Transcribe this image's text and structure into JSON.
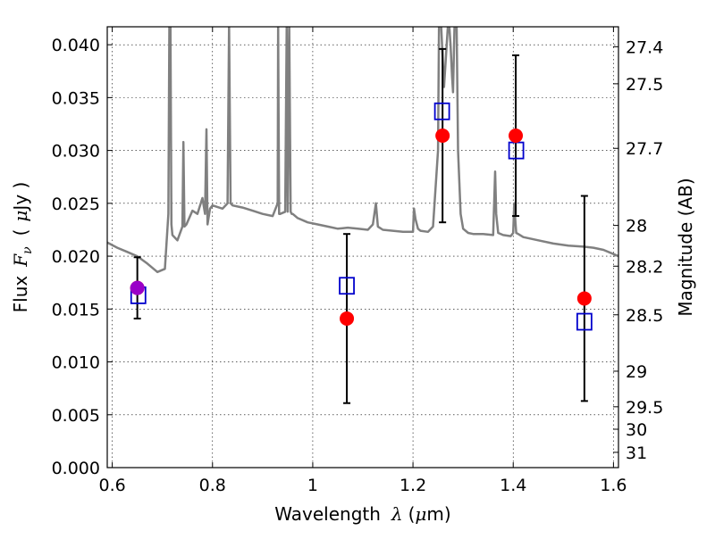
{
  "chart_data": {
    "type": "scatter",
    "xlabel": "Wavelength",
    "xlabel_symbol": "λ",
    "xlabel_unit_prefix": "(",
    "xlabel_unit_mu": "μ",
    "xlabel_unit_rest": "m)",
    "ylabel": "Flux",
    "ylabel_symbol": "F",
    "ylabel_subscript": "ν",
    "ylabel_unit_open": "(",
    "ylabel_unit_mu": "μ",
    "ylabel_unit_rest": "Jy )",
    "ylabel_right": "Magnitude (AB)",
    "xlim": [
      0.59,
      1.61
    ],
    "ylim": [
      0.0,
      0.0417
    ],
    "grid": true,
    "x_ticks": [
      {
        "value": 0.6,
        "label": "0.6"
      },
      {
        "value": 0.8,
        "label": "0.8"
      },
      {
        "value": 1.0,
        "label": "1"
      },
      {
        "value": 1.2,
        "label": "1.2"
      },
      {
        "value": 1.4,
        "label": "1.4"
      },
      {
        "value": 1.6,
        "label": "1.6"
      }
    ],
    "y_ticks": [
      {
        "value": 0.0,
        "label": "0.000"
      },
      {
        "value": 0.005,
        "label": "0.005"
      },
      {
        "value": 0.01,
        "label": "0.010"
      },
      {
        "value": 0.015,
        "label": "0.015"
      },
      {
        "value": 0.02,
        "label": "0.020"
      },
      {
        "value": 0.025,
        "label": "0.025"
      },
      {
        "value": 0.03,
        "label": "0.030"
      },
      {
        "value": 0.035,
        "label": "0.035"
      },
      {
        "value": 0.04,
        "label": "0.040"
      }
    ],
    "right_ticks": [
      {
        "value": 27.4,
        "label": "27.4"
      },
      {
        "value": 27.5,
        "label": "27.5"
      },
      {
        "value": 27.7,
        "label": "27.7"
      },
      {
        "value": 28.0,
        "label": "28"
      },
      {
        "value": 28.2,
        "label": "28.2"
      },
      {
        "value": 28.5,
        "label": "28.5"
      },
      {
        "value": 29.0,
        "label": "29"
      },
      {
        "value": 29.5,
        "label": "29.5"
      },
      {
        "value": 30.0,
        "label": "30"
      },
      {
        "value": 31.0,
        "label": "31"
      }
    ],
    "observed": {
      "color": "#ff0000",
      "points": [
        {
          "x": 0.65,
          "y": 0.017,
          "err": 0.0029
        },
        {
          "x": 1.068,
          "y": 0.0141,
          "err": 0.008
        },
        {
          "x": 1.259,
          "y": 0.0314,
          "err": 0.0082
        },
        {
          "x": 1.405,
          "y": 0.0314,
          "err": 0.0076
        },
        {
          "x": 1.542,
          "y": 0.016,
          "err": 0.0097
        }
      ]
    },
    "model": {
      "color": "#0000cc",
      "points": [
        {
          "x": 0.652,
          "y": 0.0163
        },
        {
          "x": 1.068,
          "y": 0.0172
        },
        {
          "x": 1.258,
          "y": 0.0337
        },
        {
          "x": 1.406,
          "y": 0.03
        },
        {
          "x": 1.542,
          "y": 0.0138
        }
      ]
    },
    "overlap_marker": {
      "x": 0.65,
      "y": 0.017,
      "color": "#9a00c8"
    },
    "sed": {
      "color": "#808080",
      "x": [
        0.59,
        0.61,
        0.63,
        0.65,
        0.67,
        0.69,
        0.705,
        0.712,
        0.714,
        0.716,
        0.718,
        0.72,
        0.73,
        0.74,
        0.742,
        0.744,
        0.748,
        0.76,
        0.77,
        0.78,
        0.785,
        0.788,
        0.79,
        0.795,
        0.8,
        0.82,
        0.83,
        0.833,
        0.836,
        0.84,
        0.86,
        0.88,
        0.9,
        0.92,
        0.93,
        0.931,
        0.933,
        0.935,
        0.945,
        0.948,
        0.95,
        0.953,
        0.956,
        0.958,
        0.96,
        0.97,
        0.99,
        1.01,
        1.03,
        1.05,
        1.07,
        1.09,
        1.11,
        1.12,
        1.126,
        1.13,
        1.14,
        1.16,
        1.18,
        1.2,
        1.202,
        1.205,
        1.21,
        1.215,
        1.23,
        1.24,
        1.25,
        1.252,
        1.256,
        1.26,
        1.262,
        1.27,
        1.272,
        1.275,
        1.278,
        1.28,
        1.283,
        1.287,
        1.29,
        1.295,
        1.3,
        1.31,
        1.32,
        1.34,
        1.36,
        1.362,
        1.364,
        1.366,
        1.37,
        1.38,
        1.395,
        1.4,
        1.402,
        1.404,
        1.406,
        1.41,
        1.42,
        1.45,
        1.48,
        1.51,
        1.54,
        1.56,
        1.58,
        1.6,
        1.61
      ],
      "y": [
        0.0213,
        0.0208,
        0.0204,
        0.02,
        0.0193,
        0.0185,
        0.0188,
        0.024,
        0.042,
        0.042,
        0.023,
        0.022,
        0.0215,
        0.0228,
        0.0308,
        0.0228,
        0.023,
        0.0243,
        0.024,
        0.0255,
        0.024,
        0.032,
        0.023,
        0.0245,
        0.0248,
        0.0245,
        0.025,
        0.042,
        0.025,
        0.0248,
        0.0246,
        0.0243,
        0.024,
        0.0238,
        0.025,
        0.042,
        0.024,
        0.024,
        0.0242,
        0.042,
        0.0242,
        0.042,
        0.0242,
        0.024,
        0.024,
        0.0236,
        0.0232,
        0.023,
        0.0228,
        0.0226,
        0.0227,
        0.0226,
        0.0225,
        0.023,
        0.025,
        0.0228,
        0.0225,
        0.0224,
        0.0223,
        0.0223,
        0.0245,
        0.0235,
        0.0226,
        0.0224,
        0.0223,
        0.0228,
        0.03,
        0.042,
        0.042,
        0.038,
        0.036,
        0.042,
        0.042,
        0.04,
        0.037,
        0.0355,
        0.042,
        0.042,
        0.03,
        0.024,
        0.0226,
        0.0222,
        0.0221,
        0.0221,
        0.022,
        0.025,
        0.028,
        0.024,
        0.0222,
        0.022,
        0.0219,
        0.0222,
        0.025,
        0.0235,
        0.0222,
        0.0221,
        0.0218,
        0.0215,
        0.0212,
        0.021,
        0.0209,
        0.0208,
        0.0206,
        0.0202,
        0.02
      ]
    }
  }
}
